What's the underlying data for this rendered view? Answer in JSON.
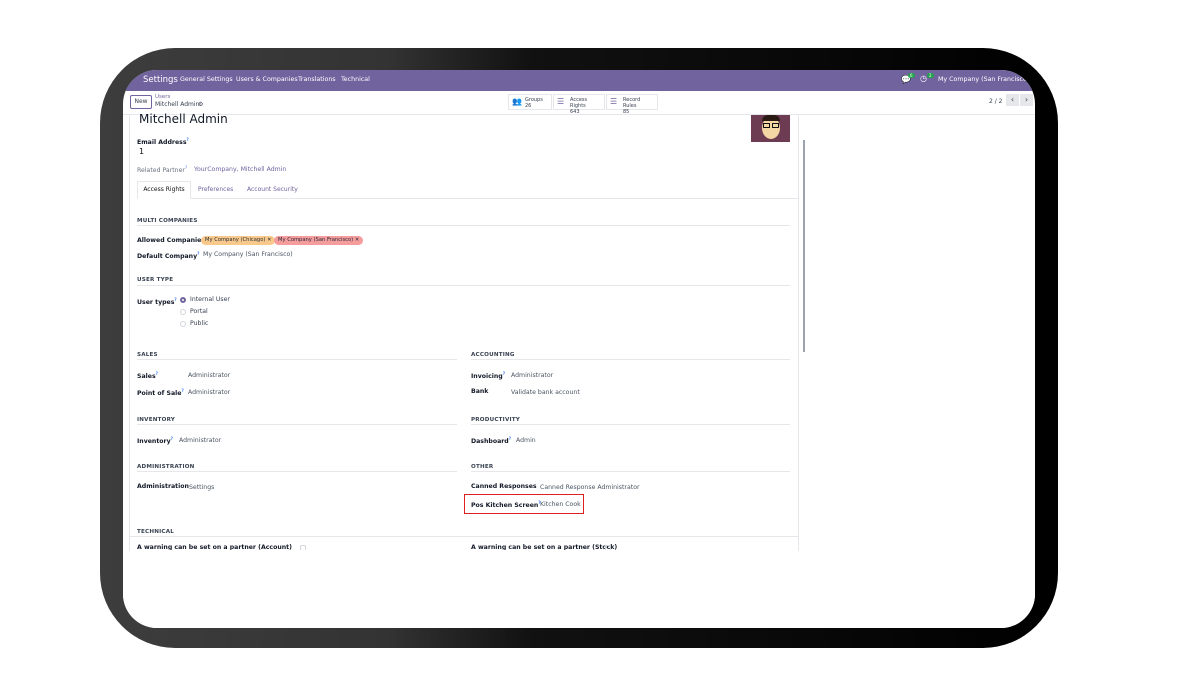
{
  "navbar": {
    "app": "Settings",
    "menu": [
      "General Settings",
      "Users & Companies",
      "Translations",
      "Technical"
    ],
    "messages_badge": "6",
    "activity_badge": "2",
    "company": "My Company (San Francisco)"
  },
  "control": {
    "new_label": "New",
    "breadcrumb_parent": "Users",
    "breadcrumb_current": "Mitchell Admin",
    "pager": "2 / 2",
    "stats": [
      {
        "label": "Groups",
        "value": "26",
        "icon": "users-icon"
      },
      {
        "label": "Access Rights",
        "value": "643",
        "icon": "list-icon"
      },
      {
        "label": "Record Rules",
        "value": "85",
        "icon": "list-icon"
      }
    ]
  },
  "form": {
    "name": "Mitchell Admin",
    "email_label": "Email Address",
    "email_value": "1",
    "partner_label": "Related Partner",
    "partner_value": "YourCompany, Mitchell Admin",
    "tabs": [
      "Access Rights",
      "Preferences",
      "Account Security"
    ],
    "active_tab": "Access Rights",
    "multi": {
      "title": "MULTI COMPANIES",
      "allowed_label": "Allowed Companies",
      "allowed": [
        {
          "name": "My Company (Chicago)",
          "color": "#f9c98b"
        },
        {
          "name": "My Company (San Francisco)",
          "color": "#f59c9c"
        }
      ],
      "default_label": "Default Company",
      "default_value": "My Company (San Francisco)"
    },
    "user_type": {
      "title": "USER TYPE",
      "label": "User types",
      "options": [
        "Internal User",
        "Portal",
        "Public"
      ],
      "selected": "Internal User"
    },
    "sales": {
      "title": "SALES",
      "rows": [
        {
          "label": "Sales",
          "value": "Administrator"
        },
        {
          "label": "Point of Sale",
          "value": "Administrator"
        }
      ]
    },
    "accounting": {
      "title": "ACCOUNTING",
      "rows": [
        {
          "label": "Invoicing",
          "value": "Administrator"
        },
        {
          "label": "Bank",
          "value": "Validate bank account"
        }
      ]
    },
    "inventory": {
      "title": "INVENTORY",
      "rows": [
        {
          "label": "Inventory",
          "value": "Administrator"
        }
      ]
    },
    "productivity": {
      "title": "PRODUCTIVITY",
      "rows": [
        {
          "label": "Dashboard",
          "value": "Admin"
        }
      ]
    },
    "administration": {
      "title": "ADMINISTRATION",
      "rows": [
        {
          "label": "Administration",
          "value": "Settings"
        }
      ]
    },
    "other": {
      "title": "OTHER",
      "rows": [
        {
          "label": "Canned Responses",
          "value": "Canned Response Administrator"
        },
        {
          "label": "Pos Kitchen Screen",
          "value": "Kitchen Cook"
        }
      ]
    },
    "technical": {
      "title": "TECHNICAL",
      "rows": [
        {
          "label": "A warning can be set on a partner (Account)"
        },
        {
          "label": "A warning can be set on a partner (Stock)"
        }
      ]
    }
  },
  "colors": {
    "brand": "#71639e",
    "highlight": "#e02020"
  }
}
